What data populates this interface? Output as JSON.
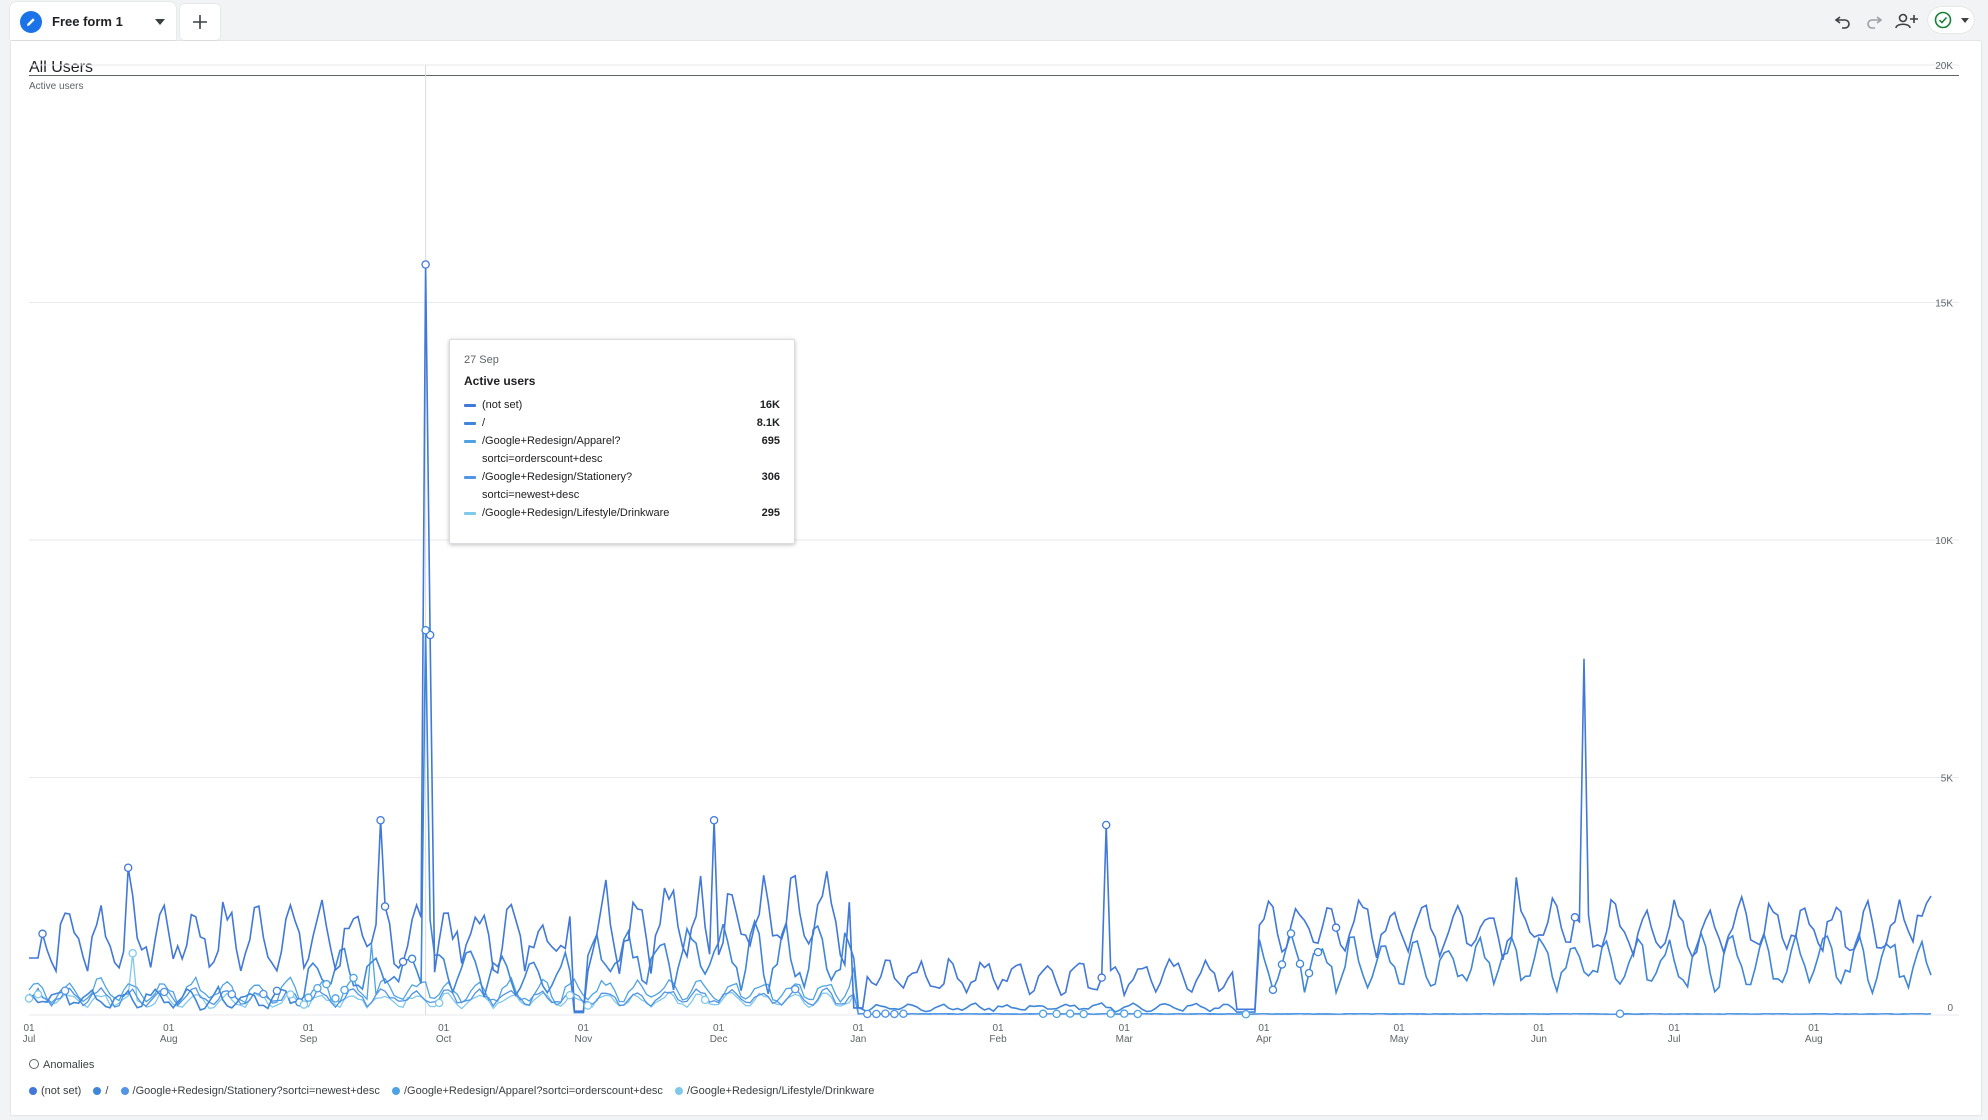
{
  "tab": {
    "title": "Free form 1"
  },
  "segment": {
    "title": "All Users"
  },
  "metric_label": "Active users",
  "anomalies_label": "Anomalies",
  "colors": {
    "accent": "#1a73e8",
    "series": [
      "#4178d9",
      "#3f86d8",
      "#5294e6",
      "#4fa3e3",
      "#81c9ec"
    ],
    "grid": "#e8eaed",
    "status_green": "#188038"
  },
  "icons": {
    "tab": "pencil-icon",
    "add": "plus-icon",
    "undo": "undo-icon",
    "redo": "redo-icon",
    "share": "share-users-icon",
    "status": "check-circle-icon"
  },
  "tooltip": {
    "date": "27 Sep",
    "metric": "Active users",
    "rows": [
      {
        "name": "(not set)",
        "value": "16K"
      },
      {
        "name": "/",
        "value": "8.1K"
      },
      {
        "name": "/Google+Redesign/Apparel?",
        "name2": "sortci=orderscount+desc",
        "value": "695"
      },
      {
        "name": "/Google+Redesign/Stationery?",
        "name2": "sortci=newest+desc",
        "value": "306"
      },
      {
        "name": "/Google+Redesign/Lifestyle/Drinkware",
        "value": "295"
      }
    ]
  },
  "legend": [
    "(not set)",
    "/",
    "/Google+Redesign/Stationery?sortci=newest+desc",
    "/Google+Redesign/Apparel?sortci=orderscount+desc",
    "/Google+Redesign/Lifestyle/Drinkware"
  ],
  "chart_data": {
    "type": "line",
    "ylabel": "Active users",
    "yticks": [
      "0",
      "5K",
      "10K",
      "15K",
      "20K"
    ],
    "ylim": [
      0,
      20000
    ],
    "xticks": [
      {
        "top": "01",
        "bottom": "Jul"
      },
      {
        "top": "01",
        "bottom": "Aug"
      },
      {
        "top": "01",
        "bottom": "Sep"
      },
      {
        "top": "01",
        "bottom": "Oct"
      },
      {
        "top": "01",
        "bottom": "Nov"
      },
      {
        "top": "01",
        "bottom": "Dec"
      },
      {
        "top": "01",
        "bottom": "Jan"
      },
      {
        "top": "01",
        "bottom": "Feb"
      },
      {
        "top": "01",
        "bottom": "Mar"
      },
      {
        "top": "01",
        "bottom": "Apr"
      },
      {
        "top": "01",
        "bottom": "May"
      },
      {
        "top": "01",
        "bottom": "Jun"
      },
      {
        "top": "01",
        "bottom": "Jul"
      },
      {
        "top": "01",
        "bottom": "Aug"
      }
    ],
    "x_range": [
      "Jul 1",
      "Aug 27 (next year)"
    ],
    "series_names": [
      "(not set)",
      "/",
      "/Google+Redesign/Stationery?sortci=newest+desc",
      "/Google+Redesign/Apparel?sortci=orderscount+desc",
      "/Google+Redesign/Lifestyle/Drinkware"
    ],
    "highlight": {
      "date": "27 Sep",
      "values": [
        16000,
        8100,
        695,
        306,
        295
      ]
    },
    "anomaly_markers": true,
    "legend_position": "bottom",
    "grid": true,
    "key_points_series1": [
      {
        "x": "Jul 23",
        "y": 3100
      },
      {
        "x": "Sep 17",
        "y": 4100
      },
      {
        "x": "Sep 27",
        "y": 15800
      },
      {
        "x": "Sep 28",
        "y": 6600
      },
      {
        "x": "Nov 30",
        "y": 4100
      },
      {
        "x": "Feb 25",
        "y": 4000
      },
      {
        "x": "May 27",
        "y": 2900
      },
      {
        "x": "Jun 11",
        "y": 7500
      },
      {
        "x": "Aug 25",
        "y": 2100
      }
    ]
  }
}
